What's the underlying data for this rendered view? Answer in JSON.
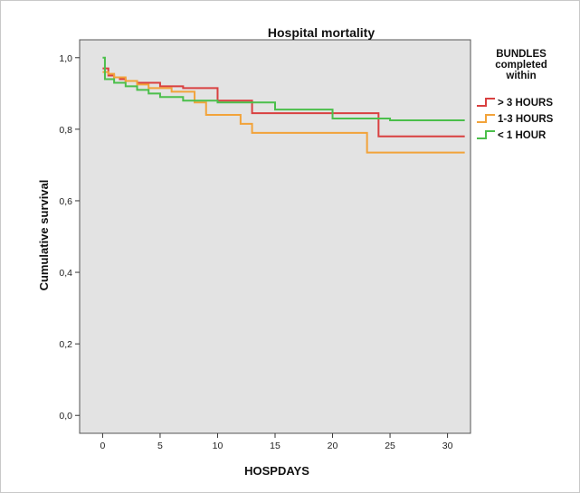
{
  "chart_data": {
    "type": "line",
    "step": true,
    "title": "Hospital mortality",
    "xlabel": "HOSPDAYS",
    "ylabel": "Cumulative survival",
    "xlim": [
      -2,
      32
    ],
    "ylim": [
      -0.05,
      1.05
    ],
    "x_ticks": [
      0,
      5,
      10,
      15,
      20,
      25,
      30
    ],
    "x_tick_labels": [
      "0",
      "5",
      "10",
      "15",
      "20",
      "25",
      "30"
    ],
    "y_ticks": [
      0.0,
      0.2,
      0.4,
      0.6,
      0.8,
      1.0
    ],
    "y_tick_labels": [
      "0,0",
      "0,2",
      "0,4",
      "0,6",
      "0,8",
      "1,0"
    ],
    "grid": false,
    "legend_title": [
      "BUNDLES",
      "completed",
      "within"
    ],
    "legend_position": "right",
    "series": [
      {
        "name": "> 3 HOURS",
        "color": "#d94040",
        "x": [
          0,
          0.5,
          1,
          1.5,
          2,
          3,
          5,
          7,
          10,
          13,
          20,
          24,
          31.5
        ],
        "y": [
          0.97,
          0.95,
          0.945,
          0.94,
          0.935,
          0.93,
          0.92,
          0.915,
          0.88,
          0.845,
          0.845,
          0.78,
          0.78
        ]
      },
      {
        "name": "1-3 HOURS",
        "color": "#f2a33a",
        "x": [
          0,
          0.5,
          1,
          2,
          3,
          4,
          6,
          8,
          9,
          12,
          13,
          20,
          23,
          31.5
        ],
        "y": [
          0.96,
          0.955,
          0.945,
          0.935,
          0.925,
          0.915,
          0.905,
          0.875,
          0.84,
          0.815,
          0.79,
          0.79,
          0.735,
          0.735
        ]
      },
      {
        "name": "< 1 HOUR",
        "color": "#4bbf4b",
        "x": [
          0,
          0.2,
          1,
          2,
          3,
          4,
          5,
          7,
          10,
          12,
          15,
          20,
          25,
          31.5
        ],
        "y": [
          1.0,
          0.94,
          0.93,
          0.92,
          0.91,
          0.9,
          0.89,
          0.88,
          0.875,
          0.875,
          0.855,
          0.83,
          0.825,
          0.825
        ]
      }
    ]
  }
}
